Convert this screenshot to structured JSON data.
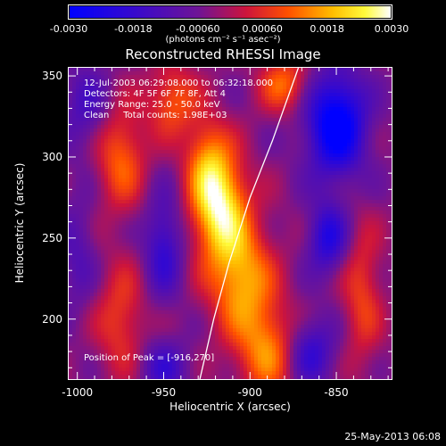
{
  "colorbar": {
    "ticks": [
      "-0.0030",
      "-0.0018",
      "-0.00060",
      "0.00060",
      "0.0018",
      "0.0030"
    ],
    "tick_values": [
      -0.003,
      -0.0018,
      -0.0006,
      0.0006,
      0.0018,
      0.003
    ],
    "units": "(photons cm⁻² s⁻¹ asec⁻²)",
    "min": -0.003,
    "max": 0.003,
    "colormap": "blue-purple-red-orange-yellow-white"
  },
  "info": {
    "time_range": "12-Jul-2003 06:29:08.000 to 06:32:18.000",
    "detectors": "Detectors: 4F 5F 6F 7F 8F, Att 4",
    "energy": "Energy Range: 25.0 - 50.0 keV",
    "clean": "Clean     Total counts: 1.98E+03",
    "peak": "Position of Peak = [-916,270]"
  },
  "footer": {
    "date": "25-May-2013 06:08"
  },
  "chart_data": {
    "type": "heatmap",
    "title": "Reconstructed RHESSI Image",
    "xlabel": "Heliocentric X (arcsec)",
    "ylabel": "Heliocentric Y (arcsec)",
    "xlim": [
      -1005,
      -818
    ],
    "ylim": [
      163,
      355
    ],
    "xticks": [
      -1000,
      -950,
      -900,
      -850
    ],
    "yticks": [
      200,
      250,
      300,
      350
    ],
    "xtick_labels": [
      "-1000",
      "-950",
      "-900",
      "-850"
    ],
    "ytick_labels": [
      "200",
      "250",
      "300",
      "350"
    ],
    "peak_position": [
      -916,
      270
    ],
    "limb_curve": [
      [
        -929,
        163
      ],
      [
        -921,
        200
      ],
      [
        -912,
        235
      ],
      [
        -900,
        275
      ],
      [
        -887,
        310
      ],
      [
        -872,
        355
      ]
    ],
    "sources": [
      {
        "x": -918,
        "y": 270,
        "amp": 0.003,
        "sx": 11,
        "sy": 22
      },
      {
        "x": -925,
        "y": 300,
        "amp": 0.0014,
        "sx": 9,
        "sy": 18
      },
      {
        "x": -905,
        "y": 225,
        "amp": 0.0022,
        "sx": 13,
        "sy": 24
      },
      {
        "x": -890,
        "y": 180,
        "amp": 0.0018,
        "sx": 12,
        "sy": 20
      },
      {
        "x": -975,
        "y": 300,
        "amp": 0.0016,
        "sx": 10,
        "sy": 22
      },
      {
        "x": -975,
        "y": 200,
        "amp": 0.0012,
        "sx": 10,
        "sy": 25
      },
      {
        "x": -945,
        "y": 335,
        "amp": 0.0015,
        "sx": 10,
        "sy": 15
      },
      {
        "x": -880,
        "y": 345,
        "amp": 0.0016,
        "sx": 10,
        "sy": 12
      },
      {
        "x": -835,
        "y": 215,
        "amp": 0.0012,
        "sx": 8,
        "sy": 30
      },
      {
        "x": -850,
        "y": 320,
        "amp": -0.003,
        "sx": 12,
        "sy": 22
      },
      {
        "x": -855,
        "y": 250,
        "amp": -0.0018,
        "sx": 8,
        "sy": 15
      },
      {
        "x": -950,
        "y": 245,
        "amp": -0.0015,
        "sx": 8,
        "sy": 22
      },
      {
        "x": -995,
        "y": 330,
        "amp": -0.001,
        "sx": 10,
        "sy": 20
      },
      {
        "x": -1000,
        "y": 240,
        "amp": -0.0008,
        "sx": 8,
        "sy": 25
      },
      {
        "x": -950,
        "y": 170,
        "amp": -0.0012,
        "sx": 10,
        "sy": 12
      },
      {
        "x": -865,
        "y": 180,
        "amp": -0.0015,
        "sx": 10,
        "sy": 15
      }
    ]
  }
}
